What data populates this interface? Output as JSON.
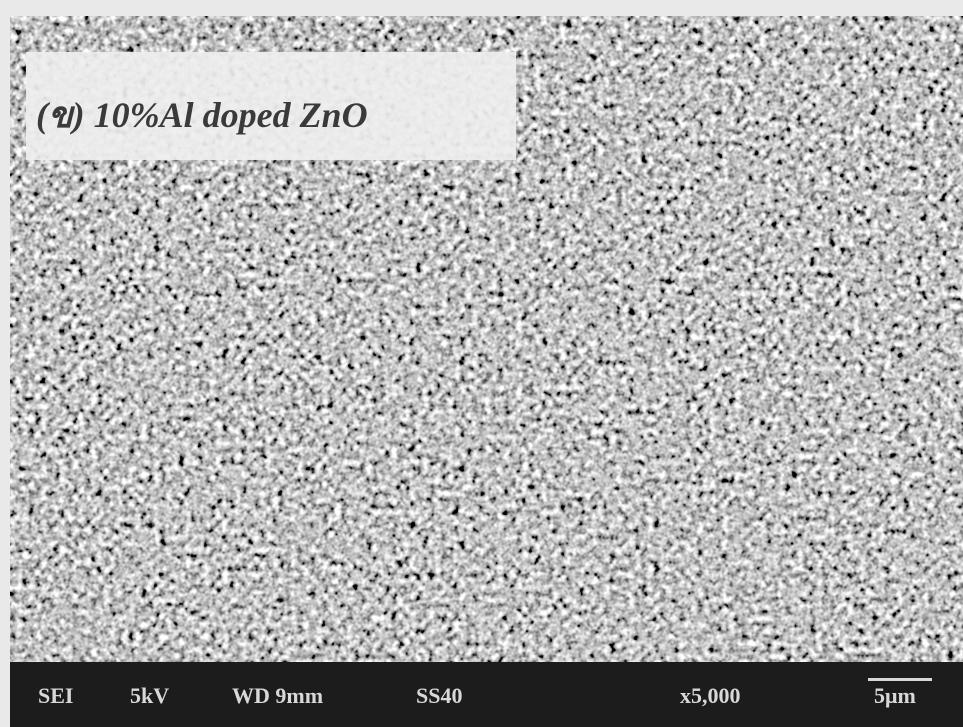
{
  "image": {
    "label": "(ข) 10%Al doped ZnO"
  },
  "info_bar": {
    "detector": "SEI",
    "voltage": "5kV",
    "working_distance": "WD 9mm",
    "spot_size": "SS40",
    "magnification": "x5,000",
    "scale": "5μm"
  }
}
